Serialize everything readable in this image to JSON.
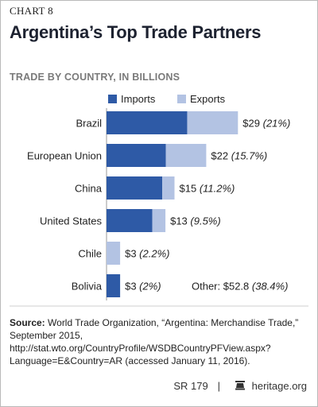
{
  "chart_label": "CHART 8",
  "title": "Argentina’s Top Trade Partners",
  "subtitle": "TRADE BY COUNTRY, IN BILLIONS",
  "colors": {
    "imports": "#2e5aa6",
    "exports": "#b3c3e3",
    "frame": "#b9b9b9",
    "rule": "#9a9a9a"
  },
  "chart_data": {
    "type": "bar",
    "orientation": "horizontal",
    "stacked": true,
    "categories": [
      "Brazil",
      "European Union",
      "China",
      "United States",
      "Chile",
      "Bolivia"
    ],
    "series": [
      {
        "name": "Imports",
        "values": [
          17.8,
          13.1,
          12.3,
          10.1,
          0,
          3
        ]
      },
      {
        "name": "Exports",
        "values": [
          11.2,
          8.9,
          2.7,
          2.9,
          3,
          0
        ]
      }
    ],
    "totals_labels": [
      "$29",
      "$22",
      "$15",
      "$13",
      "$3",
      "$3"
    ],
    "share_labels": [
      "(21%)",
      "(15.7%)",
      "(11.2%)",
      "(9.5%)",
      "(2.2%)",
      "(2%)"
    ],
    "xlim": [
      0,
      30
    ],
    "legend_position": "top",
    "other_label": "Other: $52.8",
    "other_share": "(38.4%)"
  },
  "source": {
    "label": "Source:",
    "text": "World Trade Organization, “Argentina: Merchandise Trade,” September 2015, http://stat.wto.org/CountryProfile/WSDBCountryPFView.aspx?Language=E&Country=AR (accessed January 11, 2016)."
  },
  "footer": {
    "report_id": "SR 179",
    "site": "heritage.org",
    "logo_icon": "liberty-bell-icon"
  }
}
